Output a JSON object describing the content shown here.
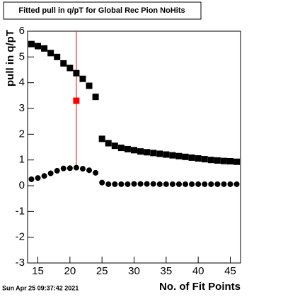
{
  "chart_data": {
    "type": "scatter",
    "title": "Fitted pull in q/pT for Global Rec Pion NoHits",
    "y_label": "pull in q/pT",
    "x_label": "No. of Fit Points",
    "timestamp": "Sun Apr 25 09:37:42 2021",
    "x": [
      14,
      15,
      16,
      17,
      18,
      19,
      20,
      21,
      22,
      23,
      24,
      25,
      26,
      27,
      28,
      29,
      30,
      31,
      32,
      33,
      34,
      35,
      36,
      37,
      38,
      39,
      40,
      41,
      42,
      43,
      44,
      45,
      46
    ],
    "series": [
      {
        "marker": "square",
        "color": "#000000",
        "values": [
          5.5,
          5.42,
          5.33,
          5.15,
          5.0,
          4.75,
          4.57,
          4.37,
          4.15,
          3.88,
          3.45,
          1.82,
          1.65,
          1.55,
          1.47,
          1.42,
          1.38,
          1.33,
          1.3,
          1.27,
          1.24,
          1.21,
          1.18,
          1.15,
          1.12,
          1.09,
          1.06,
          1.03,
          1.0,
          0.98,
          0.96,
          0.95,
          0.93
        ]
      },
      {
        "marker": "circle",
        "color": "#000000",
        "values": [
          0.25,
          0.3,
          0.38,
          0.48,
          0.58,
          0.67,
          0.68,
          0.7,
          0.66,
          0.6,
          0.5,
          0.12,
          0.06,
          0.06,
          0.06,
          0.06,
          0.07,
          0.07,
          0.07,
          0.07,
          0.06,
          0.06,
          0.06,
          0.06,
          0.06,
          0.06,
          0.06,
          0.06,
          0.06,
          0.06,
          0.06,
          0.06,
          0.06
        ]
      }
    ],
    "highlight": {
      "x": 21,
      "y": 3.3,
      "color": "#ff0000"
    },
    "vline": {
      "x": 21,
      "y": [
        0.7,
        6
      ],
      "color": "#ff0000"
    },
    "xlim": [
      13.4,
      46.6
    ],
    "ylim": [
      -3,
      6
    ],
    "xticks": [
      15,
      20,
      25,
      30,
      35,
      40,
      45
    ],
    "yticks": [
      -3,
      -2,
      -1,
      0,
      1,
      2,
      3,
      4,
      5,
      6
    ]
  }
}
